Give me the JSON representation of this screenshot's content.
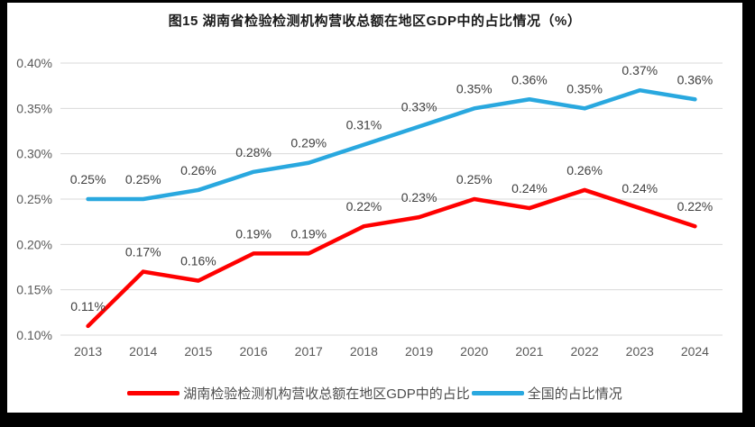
{
  "window": {
    "frame_background": "#000000",
    "canvas_background": "#ffffff"
  },
  "chart": {
    "title": "图15 湖南省检验检测机构营收总额在地区GDP中的占比情况（%）"
  },
  "legend": {
    "items": [
      {
        "label": "湖南检验检测机构营收总额在地区GDP中的占比",
        "color": "#FF0000"
      },
      {
        "label": "全国的占比情况",
        "color": "#29A8DF"
      }
    ]
  },
  "chart_data": {
    "type": "line",
    "title": "图15 湖南省检验检测机构营收总额在地区GDP中的占比情况（%）",
    "categories": [
      "2013",
      "2014",
      "2015",
      "2016",
      "2017",
      "2018",
      "2019",
      "2020",
      "2021",
      "2022",
      "2023",
      "2024"
    ],
    "series": [
      {
        "name": "湖南检验检测机构营收总额在地区GDP中的占比",
        "color": "#FF0000",
        "values": [
          0.11,
          0.17,
          0.16,
          0.19,
          0.19,
          0.22,
          0.23,
          0.25,
          0.24,
          0.26,
          0.24,
          0.22
        ],
        "labels": [
          "0.11%",
          "0.17%",
          "0.16%",
          "0.19%",
          "0.19%",
          "0.22%",
          "0.23%",
          "0.25%",
          "0.24%",
          "0.26%",
          "0.24%",
          "0.22%"
        ]
      },
      {
        "name": "全国的占比情况",
        "color": "#29A8DF",
        "values": [
          0.25,
          0.25,
          0.26,
          0.28,
          0.29,
          0.31,
          0.33,
          0.35,
          0.36,
          0.35,
          0.37,
          0.36
        ],
        "labels": [
          "0.25%",
          "0.25%",
          "0.26%",
          "0.28%",
          "0.29%",
          "0.31%",
          "0.33%",
          "0.35%",
          "0.36%",
          "0.35%",
          "0.37%",
          "0.36%"
        ]
      }
    ],
    "xlabel": "",
    "ylabel": "",
    "y_axis": {
      "ticks": [
        "0.10%",
        "0.15%",
        "0.20%",
        "0.25%",
        "0.30%",
        "0.35%",
        "0.40%"
      ],
      "min": 0.1,
      "max": 0.4
    },
    "grid": "horizontal",
    "grid_color": "#D9D9D9",
    "axis_text_color": "#595959",
    "data_label_color": "#3f3f3f",
    "legend_position": "bottom"
  }
}
